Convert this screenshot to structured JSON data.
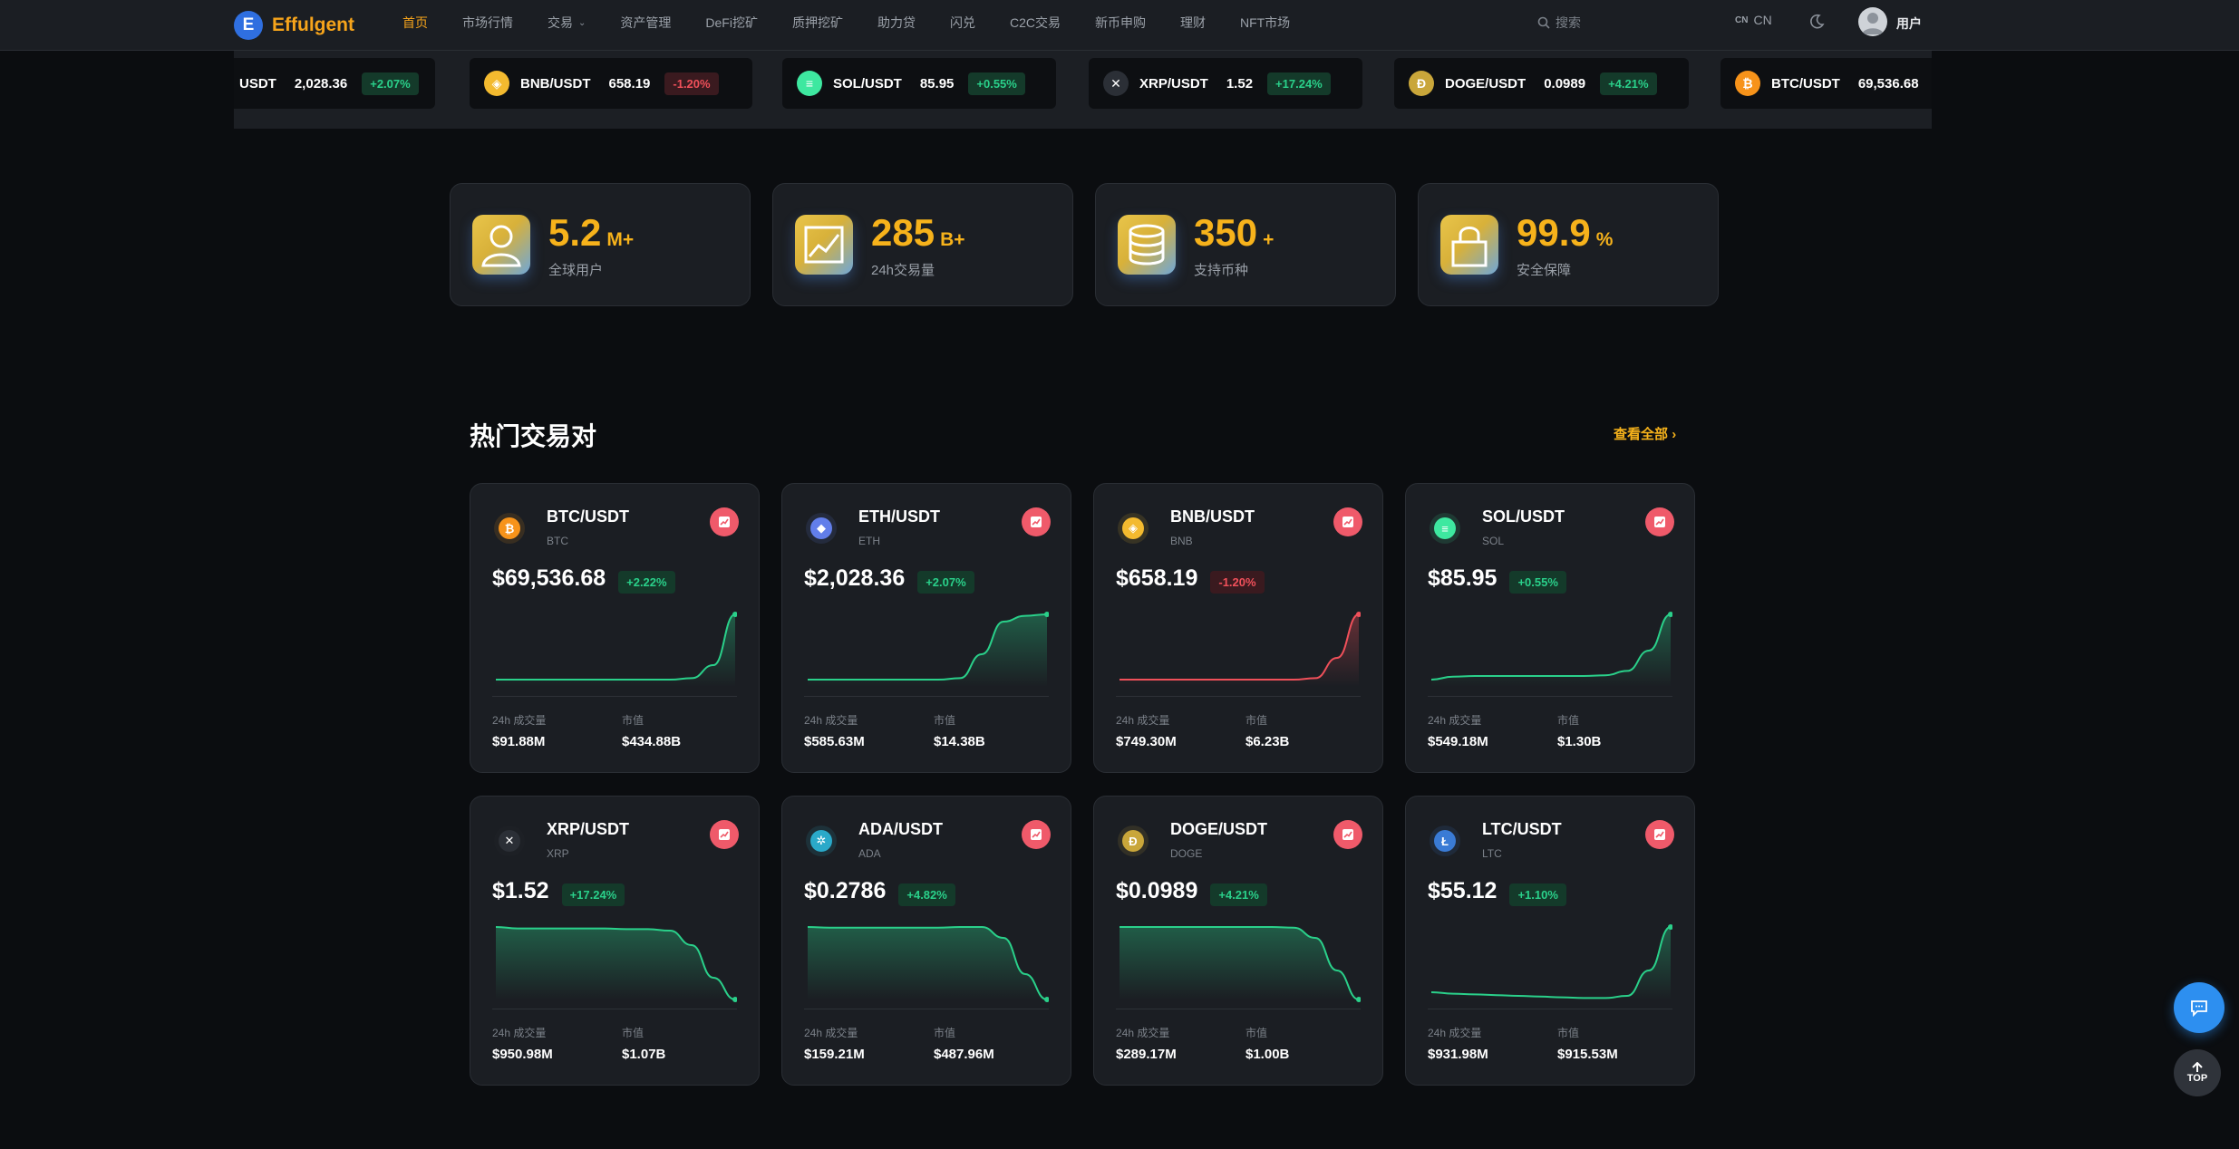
{
  "header": {
    "logo_letter": "E",
    "brand": "Effulgent",
    "nav": [
      {
        "label": "首页",
        "active": true
      },
      {
        "label": "市场行情"
      },
      {
        "label": "交易",
        "dropdown": true
      },
      {
        "label": "资产管理"
      },
      {
        "label": "DeFi挖矿"
      },
      {
        "label": "质押挖矿"
      },
      {
        "label": "助力贷"
      },
      {
        "label": "闪兑"
      },
      {
        "label": "C2C交易"
      },
      {
        "label": "新币申购"
      },
      {
        "label": "理财"
      },
      {
        "label": "NFT市场"
      }
    ],
    "search_placeholder": "搜索",
    "lang_mini": "CN",
    "lang": "CN",
    "user_label": "用户"
  },
  "ticker": [
    {
      "pair": "ETH/USDT",
      "shown_pair": "USDT",
      "price": "2,028.36",
      "change": "+2.07%",
      "dir": "up",
      "icon": "eth-icon",
      "color": "#627eea",
      "glyph": "◆"
    },
    {
      "pair": "BNB/USDT",
      "price": "658.19",
      "change": "-1.20%",
      "dir": "down",
      "icon": "bnb-icon",
      "color": "#f3ba2f",
      "glyph": "◈"
    },
    {
      "pair": "SOL/USDT",
      "price": "85.95",
      "change": "+0.55%",
      "dir": "up",
      "icon": "sol-icon",
      "color": "#3ee8a0",
      "glyph": "≡"
    },
    {
      "pair": "XRP/USDT",
      "price": "1.52",
      "change": "+17.24%",
      "dir": "up",
      "icon": "xrp-icon",
      "color": "#2b2f36",
      "glyph": "✕"
    },
    {
      "pair": "DOGE/USDT",
      "price": "0.0989",
      "change": "+4.21%",
      "dir": "up",
      "icon": "doge-icon",
      "color": "#c9a63a",
      "glyph": "Ð"
    },
    {
      "pair": "BTC/USDT",
      "price": "69,536.68",
      "change": "",
      "dir": "up",
      "icon": "btc-icon",
      "color": "#f7931a",
      "glyph": "₿"
    }
  ],
  "stats": [
    {
      "num": "5.2",
      "suffix": "M+",
      "label": "全球用户",
      "icon": "user-icon"
    },
    {
      "num": "285",
      "suffix": "B+",
      "label": "24h交易量",
      "icon": "trend-chart-icon"
    },
    {
      "num": "350",
      "suffix": "+",
      "label": "支持币种",
      "icon": "coin-stack-icon"
    },
    {
      "num": "99.9",
      "suffix": "%",
      "label": "安全保障",
      "icon": "lock-icon"
    }
  ],
  "section": {
    "title": "热门交易对",
    "view_all": "查看全部"
  },
  "labels": {
    "volume": "24h 成交量",
    "market_cap": "市值",
    "top": "TOP"
  },
  "colors": {
    "up": "#2ad08a",
    "down": "#f0505a",
    "accent": "#f6b21b",
    "chart_button": "#ef5a6a"
  },
  "pairs": [
    {
      "pair": "BTC/USDT",
      "sym": "BTC",
      "price": "$69,536.68",
      "change": "+2.22%",
      "dir": "up",
      "volume": "$91.88M",
      "cap": "$434.88B",
      "icon": "btc-icon",
      "color": "#f7931a",
      "glyph": "₿",
      "trend": [
        10,
        10,
        10,
        10,
        10,
        10,
        10,
        10,
        10,
        12,
        30,
        100
      ]
    },
    {
      "pair": "ETH/USDT",
      "sym": "ETH",
      "price": "$2,028.36",
      "change": "+2.07%",
      "dir": "up",
      "volume": "$585.63M",
      "cap": "$14.38B",
      "icon": "eth-icon",
      "color": "#627eea",
      "glyph": "◆",
      "trend": [
        10,
        10,
        10,
        10,
        10,
        10,
        10,
        12,
        45,
        90,
        98,
        100
      ]
    },
    {
      "pair": "BNB/USDT",
      "sym": "BNB",
      "price": "$658.19",
      "change": "-1.20%",
      "dir": "down",
      "volume": "$749.30M",
      "cap": "$6.23B",
      "icon": "bnb-icon",
      "color": "#f3ba2f",
      "glyph": "◈",
      "trend": [
        10,
        10,
        10,
        10,
        10,
        10,
        10,
        10,
        10,
        12,
        40,
        100
      ]
    },
    {
      "pair": "SOL/USDT",
      "sym": "SOL",
      "price": "$85.95",
      "change": "+0.55%",
      "dir": "up",
      "volume": "$549.18M",
      "cap": "$1.30B",
      "icon": "sol-icon",
      "color": "#3ee8a0",
      "glyph": "≡",
      "trend": [
        10,
        14,
        15,
        15,
        15,
        15,
        15,
        15,
        16,
        22,
        50,
        100
      ]
    },
    {
      "pair": "XRP/USDT",
      "sym": "XRP",
      "price": "$1.52",
      "change": "+17.24%",
      "dir": "up",
      "volume": "$950.98M",
      "cap": "$1.07B",
      "icon": "xrp-icon",
      "color": "#2b2f36",
      "glyph": "✕",
      "trend": [
        100,
        98,
        98,
        98,
        98,
        98,
        97,
        97,
        95,
        75,
        30,
        0
      ]
    },
    {
      "pair": "ADA/USDT",
      "sym": "ADA",
      "price": "$0.2786",
      "change": "+4.82%",
      "dir": "up",
      "volume": "$159.21M",
      "cap": "$487.96M",
      "icon": "ada-icon",
      "color": "#2aa9c9",
      "glyph": "✲",
      "trend": [
        100,
        99,
        99,
        99,
        99,
        99,
        99,
        100,
        100,
        85,
        35,
        0
      ]
    },
    {
      "pair": "DOGE/USDT",
      "sym": "DOGE",
      "price": "$0.0989",
      "change": "+4.21%",
      "dir": "up",
      "volume": "$289.17M",
      "cap": "$1.00B",
      "icon": "doge-icon",
      "color": "#c9a63a",
      "glyph": "Ð",
      "trend": [
        100,
        100,
        100,
        100,
        100,
        100,
        100,
        100,
        99,
        85,
        40,
        0
      ]
    },
    {
      "pair": "LTC/USDT",
      "sym": "LTC",
      "price": "$55.12",
      "change": "+1.10%",
      "dir": "up",
      "volume": "$931.98M",
      "cap": "$915.53M",
      "icon": "ltc-icon",
      "color": "#3a7bd5",
      "glyph": "Ł",
      "trend": [
        10,
        8,
        7,
        6,
        5,
        4,
        3,
        2,
        2,
        5,
        40,
        100
      ]
    }
  ]
}
